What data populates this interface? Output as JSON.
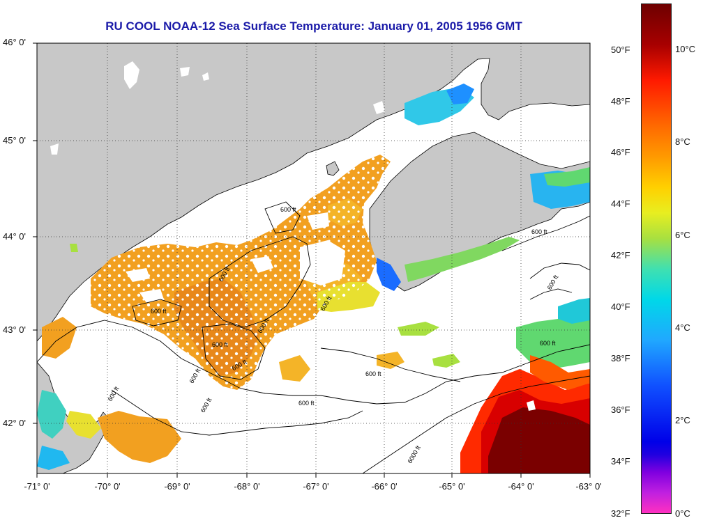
{
  "title": "RU COOL  NOAA-12  Sea Surface Temperature:  January 01, 2005 1956 GMT",
  "latitude_labels": [
    "46° 0'",
    "45° 0'",
    "44° 0'",
    "43° 0'",
    "42° 0'"
  ],
  "longitude_labels": [
    "-71° 0'",
    "-70° 0'",
    "-69° 0'",
    "-68° 0'",
    "-67° 0'",
    "-66° 0'",
    "-65° 0'",
    "-64° 0'",
    "-63° 0'"
  ],
  "colorbar": {
    "fahrenheit_labels": [
      "50°F",
      "48°F",
      "46°F",
      "44°F",
      "42°F",
      "40°F",
      "38°F",
      "36°F",
      "34°F",
      "32°F"
    ],
    "celsius_labels": [
      "10°C",
      "8°C",
      "6°C",
      "4°C",
      "2°C",
      "0°C"
    ]
  },
  "contour_label": "600 ft",
  "contour_labels": [
    "600 ft",
    "600 ft",
    "600 ft",
    "600 ft",
    "600 ft",
    "600 ft",
    "600 ft",
    "600 ft",
    "600 ft",
    "600 ft",
    "600 ft",
    "600 ft",
    "600 ft"
  ],
  "contour_label_deep": "6000 ft",
  "colors": {
    "land": "#c8c8c8",
    "no_data": "#ffffff",
    "title": "#1a1aa8",
    "warm_core": "#7a0000",
    "shelf_water": "#f09a18"
  }
}
